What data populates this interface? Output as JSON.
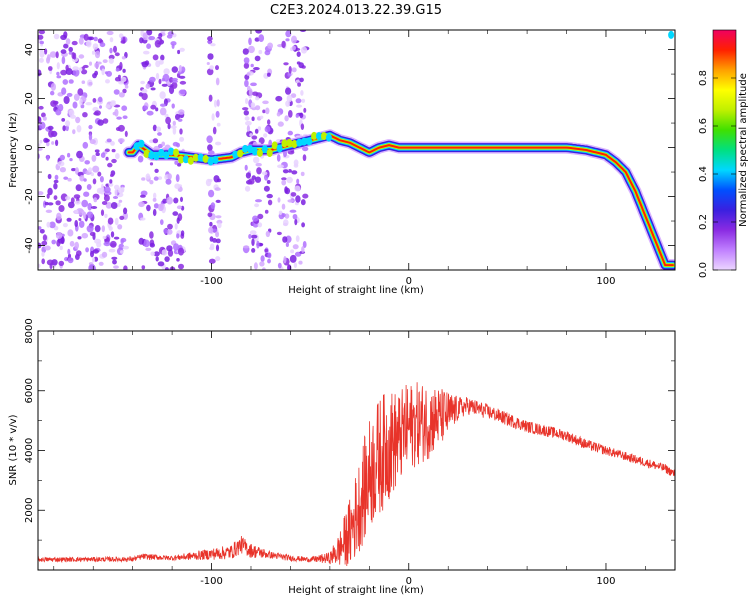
{
  "page_title": "C2E3.2024.013.22.39.G15",
  "colors": {
    "snr_line": "#e8332a",
    "spectrogram_scatter": "#8a2be2",
    "colorbar_stops": [
      "#ecd6ff",
      "#c080ff",
      "#8a2be2",
      "#3a20e0",
      "#0050ff",
      "#00d8ff",
      "#00e080",
      "#40e000",
      "#c0f000",
      "#ffff00",
      "#ffa000",
      "#ff2000",
      "#f00060"
    ]
  },
  "chart_data": [
    {
      "type": "heatmap",
      "title": "C2E3.2024.013.22.39.G15",
      "xlabel": "Height of straight line (km)",
      "ylabel": "Frequency (Hz)",
      "xlim": [
        -188,
        135
      ],
      "ylim": [
        -50,
        48
      ],
      "xticks": [
        -100,
        0,
        100
      ],
      "yticks": [
        -40,
        -20,
        0,
        20,
        40
      ],
      "colorbar": {
        "label": "Normalized spectral amplitude",
        "range": [
          0,
          1
        ],
        "ticks": [
          "0.0",
          "0.2",
          "0.4",
          "0.6",
          "0.8"
        ]
      },
      "trace": {
        "x": [
          -140,
          -137,
          -130,
          -120,
          -110,
          -100,
          -90,
          -85,
          -80,
          -70,
          -65,
          -60,
          -55,
          -50,
          -45,
          -40,
          -35,
          -30,
          -25,
          -20,
          -15,
          -10,
          -5,
          0,
          10,
          20,
          40,
          60,
          80,
          90,
          95,
          100,
          105,
          110,
          115,
          120,
          125,
          130
        ],
        "y": [
          -2,
          1,
          -3,
          -3,
          -4,
          -5,
          -4,
          -2,
          -1,
          -1,
          0,
          1,
          2,
          3,
          4,
          5,
          3,
          2,
          0,
          -2,
          0,
          1,
          0,
          0,
          0,
          0,
          0,
          0,
          0,
          -1,
          -2,
          -3,
          -6,
          -10,
          -18,
          -28,
          -38,
          -48
        ]
      },
      "scatter_columns": [
        [
          -188,
          -143
        ],
        [
          -136,
          -114
        ],
        [
          -102,
          -96
        ],
        [
          -83,
          -70
        ],
        [
          -66,
          -52
        ]
      ]
    },
    {
      "type": "line",
      "xlabel": "Height of straight line (km)",
      "ylabel": "SNR (10 * v/v)",
      "xlim": [
        -188,
        135
      ],
      "ylim": [
        0,
        8000
      ],
      "xticks": [
        -100,
        0,
        100
      ],
      "yticks": [
        2000,
        4000,
        6000,
        8000
      ],
      "envelope": {
        "x": [
          -188,
          -140,
          -135,
          -120,
          -90,
          -85,
          -80,
          -70,
          -60,
          -50,
          -40,
          -35,
          -30,
          -25,
          -20,
          -15,
          -10,
          -5,
          0,
          10,
          20,
          25,
          30,
          40,
          60,
          80,
          90,
          100,
          110,
          120,
          130,
          135
        ],
        "base": [
          350,
          360,
          450,
          400,
          600,
          850,
          650,
          500,
          400,
          350,
          400,
          700,
          1200,
          2200,
          3200,
          3800,
          4200,
          4400,
          4800,
          5000,
          5200,
          5400,
          5500,
          5300,
          4800,
          4500,
          4200,
          4000,
          3800,
          3600,
          3400,
          3200
        ],
        "spread": [
          80,
          80,
          100,
          80,
          250,
          300,
          250,
          120,
          100,
          80,
          200,
          600,
          1200,
          1600,
          1900,
          2000,
          1900,
          1600,
          1500,
          1300,
          800,
          400,
          300,
          250,
          200,
          180,
          180,
          160,
          150,
          150,
          150,
          150
        ]
      }
    }
  ]
}
